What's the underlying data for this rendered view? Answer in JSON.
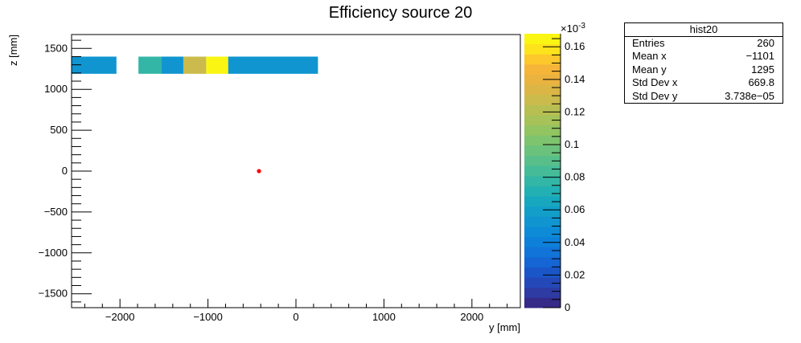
{
  "chart_data": {
    "type": "heatmap",
    "title": "Efficiency source 20",
    "xlabel": "y [mm]",
    "ylabel": "z [mm]",
    "xlim": [
      -2550,
      2550
    ],
    "ylim": [
      -1670,
      1670
    ],
    "xticks": [
      -2000,
      -1000,
      0,
      1000,
      2000
    ],
    "xtick_labels": [
      "−2000",
      "−1000",
      "0",
      "1000",
      "2000"
    ],
    "yticks": [
      -1500,
      -1000,
      -500,
      0,
      500,
      1000,
      1500
    ],
    "ytick_labels": [
      "−1500",
      "−1000",
      "−500",
      "0",
      "500",
      "1000",
      "1500"
    ],
    "zlim": [
      0,
      0.000168
    ],
    "z_exponent_label": "×10",
    "z_exponent_power": "-3",
    "zticks": [
      0,
      2e-05,
      4e-05,
      6e-05,
      8e-05,
      0.0001,
      0.00012,
      0.00014,
      0.00016
    ],
    "ztick_labels": [
      "0",
      "0.02",
      "0.04",
      "0.06",
      "0.08",
      "0.1",
      "0.12",
      "0.14",
      "0.16"
    ],
    "palette": [
      "#352a87",
      "#2d3ba3",
      "#2448b8",
      "#1a56c8",
      "#1565d4",
      "#1174d8",
      "#0d80d9",
      "#0e8bd6",
      "#1095d0",
      "#129ec8",
      "#17a7be",
      "#23b0b2",
      "#34b6a6",
      "#45bb98",
      "#58bf8a",
      "#6ac27c",
      "#7ec46e",
      "#92c462",
      "#a6c258",
      "#b8bf52",
      "#cabb4c",
      "#dbb646",
      "#eab33f",
      "#f5b538",
      "#fcc82b",
      "#fde31c",
      "#fbf513"
    ],
    "cells": [
      {
        "y0": -2550,
        "y1": -2040,
        "z0": 1190,
        "z1": 1400,
        "value": 5e-05
      },
      {
        "y0": -1790,
        "y1": -1530,
        "z0": 1190,
        "z1": 1400,
        "value": 8e-05
      },
      {
        "y0": -1530,
        "y1": -1280,
        "z0": 1190,
        "z1": 1400,
        "value": 5e-05
      },
      {
        "y0": -1280,
        "y1": -1020,
        "z0": 1190,
        "z1": 1400,
        "value": 0.00013
      },
      {
        "y0": -1020,
        "y1": -770,
        "z0": 1190,
        "z1": 1400,
        "value": 0.000165
      },
      {
        "y0": -770,
        "y1": 250,
        "z0": 1190,
        "z1": 1400,
        "value": 5e-05
      }
    ],
    "marker": {
      "y": -420,
      "z": 0,
      "color": "#ff0000"
    }
  },
  "stats": {
    "title": "hist20",
    "rows": [
      {
        "label": "Entries",
        "value": "260"
      },
      {
        "label": "Mean x",
        "value": "−1101"
      },
      {
        "label": "Mean y",
        "value": "1295"
      },
      {
        "label": "Std Dev x",
        "value": "669.8"
      },
      {
        "label": "Std Dev y",
        "value": "3.738e−05"
      }
    ]
  }
}
